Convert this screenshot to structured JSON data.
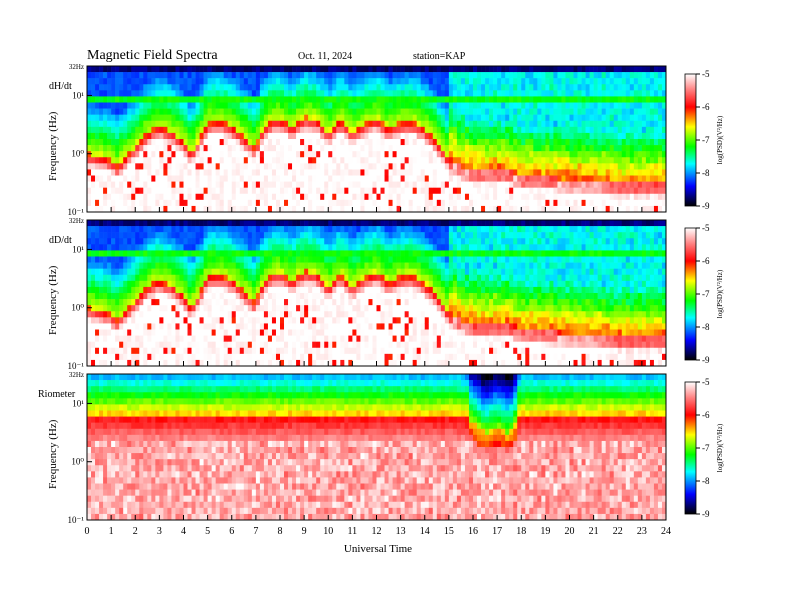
{
  "header": {
    "title": "Magnetic  Field  Spectra",
    "date": "Oct. 11, 2024",
    "station": "station=KAP"
  },
  "colors": {
    "colormap": [
      "#ffffff",
      "#ff0000",
      "#ffff00",
      "#00ff00",
      "#00ffff",
      "#0000ff",
      "#000000"
    ]
  },
  "chart_data": [
    {
      "type": "heatmap",
      "panel_label": "dH/dt",
      "ylabel": "Frequency  (Hz)",
      "top_label": "32Hz",
      "ytick_labels": [
        "10¹",
        "10⁰",
        "10⁻¹"
      ],
      "yticks": [
        10,
        1,
        0.1
      ],
      "ylim": [
        0.1,
        32
      ],
      "yscale": "log",
      "x_ticks": [
        0,
        1,
        2,
        3,
        4,
        5,
        6,
        7,
        8,
        9,
        10,
        11,
        12,
        13,
        14,
        15,
        16,
        17,
        18,
        19,
        20,
        21,
        22,
        23,
        24
      ],
      "xlim": [
        0,
        24
      ],
      "band_hz": 8,
      "profile": {
        "hours": [
          0,
          0.5,
          1,
          1.2,
          1.5,
          2,
          2.5,
          3,
          3.5,
          4,
          4.3,
          4.7,
          5,
          5.5,
          6,
          6.5,
          7,
          7.3,
          7.7,
          8,
          8.5,
          9,
          9.5,
          10,
          10.5,
          11,
          11.5,
          12,
          12.5,
          13,
          13.5,
          14,
          14.5,
          15,
          15.5,
          16,
          16.5,
          17,
          17.5,
          18,
          19,
          20,
          21,
          22,
          23,
          24
        ],
        "cutoff_hz": [
          1.0,
          0.9,
          0.8,
          0.6,
          0.8,
          1.3,
          2.2,
          3.0,
          2.4,
          1.6,
          1.0,
          1.8,
          3.4,
          3.6,
          3.0,
          1.9,
          1.2,
          2.6,
          3.8,
          4.0,
          2.8,
          4.2,
          3.9,
          2.2,
          3.7,
          2.3,
          3.2,
          4.0,
          2.6,
          3.4,
          3.5,
          2.6,
          1.6,
          0.8,
          0.6,
          0.5,
          0.5,
          0.5,
          0.5,
          0.4,
          0.4,
          0.35,
          0.35,
          0.3,
          0.3,
          0.3
        ]
      },
      "colorbar": {
        "label": "log(PSD)(V²/Hz)",
        "ticks": [
          -5,
          -6,
          -7,
          -8,
          -9
        ],
        "tick_labels": [
          "-5",
          "-6",
          "-7",
          "-8",
          "-9"
        ],
        "range": [
          -9,
          -5
        ]
      }
    },
    {
      "type": "heatmap",
      "panel_label": "dD/dt",
      "ylabel": "Frequency  (Hz)",
      "top_label": "32Hz",
      "ytick_labels": [
        "10¹",
        "10⁰",
        "10⁻¹"
      ],
      "yticks": [
        10,
        1,
        0.1
      ],
      "ylim": [
        0.1,
        32
      ],
      "yscale": "log",
      "x_ticks": [
        0,
        1,
        2,
        3,
        4,
        5,
        6,
        7,
        8,
        9,
        10,
        11,
        12,
        13,
        14,
        15,
        16,
        17,
        18,
        19,
        20,
        21,
        22,
        23,
        24
      ],
      "xlim": [
        0,
        24
      ],
      "band_hz": 8,
      "profile": {
        "hours": [
          0,
          0.5,
          1,
          1.2,
          1.5,
          2,
          2.5,
          3,
          3.5,
          4,
          4.3,
          4.7,
          5,
          5.5,
          6,
          6.5,
          7,
          7.3,
          7.7,
          8,
          8.5,
          9,
          9.5,
          10,
          10.5,
          11,
          11.5,
          12,
          12.5,
          13,
          13.5,
          14,
          14.5,
          15,
          15.5,
          16,
          16.5,
          17,
          17.5,
          18,
          19,
          20,
          21,
          22,
          23,
          24
        ],
        "cutoff_hz": [
          1.0,
          0.9,
          0.8,
          0.6,
          0.8,
          1.3,
          2.2,
          3.0,
          2.4,
          1.6,
          1.0,
          1.8,
          3.4,
          3.6,
          3.0,
          1.9,
          1.2,
          2.6,
          3.8,
          4.0,
          2.8,
          4.2,
          3.9,
          2.2,
          3.7,
          2.3,
          3.2,
          4.0,
          2.6,
          3.4,
          3.5,
          2.6,
          1.6,
          0.8,
          0.6,
          0.5,
          0.5,
          0.5,
          0.5,
          0.4,
          0.4,
          0.35,
          0.35,
          0.3,
          0.3,
          0.3
        ]
      },
      "colorbar": {
        "label": "log(PSD)(V²/Hz)",
        "ticks": [
          -5,
          -6,
          -7,
          -8,
          -9
        ],
        "tick_labels": [
          "-5",
          "-6",
          "-7",
          "-8",
          "-9"
        ],
        "range": [
          -9,
          -5
        ]
      }
    },
    {
      "type": "heatmap",
      "panel_label": "Riometer",
      "ylabel": "Frequency  (Hz)",
      "top_label": "32Hz",
      "ytick_labels": [
        "10¹",
        "10⁰",
        "10⁻¹"
      ],
      "yticks": [
        10,
        1,
        0.1
      ],
      "ylim": [
        0.1,
        32
      ],
      "yscale": "log",
      "x_ticks": [
        0,
        1,
        2,
        3,
        4,
        5,
        6,
        7,
        8,
        9,
        10,
        11,
        12,
        13,
        14,
        15,
        16,
        17,
        18,
        19,
        20,
        21,
        22,
        23,
        24
      ],
      "x_tick_labels": [
        "0",
        "1",
        "2",
        "3",
        "4",
        "5",
        "6",
        "7",
        "8",
        "9",
        "10",
        "11",
        "12",
        "13",
        "14",
        "15",
        "16",
        "17",
        "18",
        "19",
        "20",
        "21",
        "22",
        "23",
        "24"
      ],
      "xlim": [
        0,
        24
      ],
      "xlabel": "Universal Time",
      "profile": {
        "hours": [
          0,
          1,
          2,
          4,
          6,
          8,
          10,
          12,
          14,
          15,
          15.5,
          16,
          16.5,
          17,
          17.5,
          18,
          20,
          22,
          24
        ],
        "cutoff_hz": [
          6,
          6,
          6,
          6,
          6,
          6,
          6,
          6,
          6,
          6,
          6,
          5,
          3,
          4,
          3,
          6,
          6,
          6,
          6
        ]
      },
      "colorbar": {
        "label": "log(PSD)(V²/Hz)",
        "ticks": [
          -5,
          -6,
          -7,
          -8,
          -9
        ],
        "tick_labels": [
          "-5",
          "-6",
          "-7",
          "-8",
          "-9"
        ],
        "range": [
          -9,
          -5
        ]
      }
    }
  ]
}
